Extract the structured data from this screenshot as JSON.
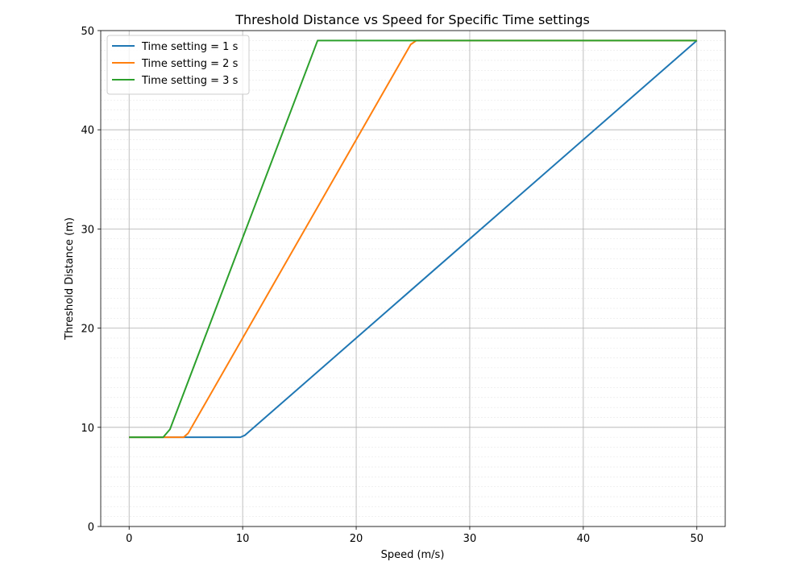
{
  "chart_data": {
    "type": "line",
    "title": "Threshold Distance vs Speed for Specific Time settings",
    "xlabel": "Speed (m/s)",
    "ylabel": "Threshold Distance (m)",
    "xlim": [
      -2.5,
      52.5
    ],
    "ylim": [
      0,
      50
    ],
    "xticks": [
      0,
      10,
      20,
      30,
      40,
      50
    ],
    "yticks": [
      0,
      10,
      20,
      30,
      40,
      50
    ],
    "yminor_step": 1,
    "grid": true,
    "legend_position": "top-left",
    "series": [
      {
        "name": "Time setting = 1 s",
        "color": "#1f77b4",
        "x": [
          0,
          9.8,
          10.2,
          50
        ],
        "y": [
          9,
          9,
          9.2,
          49
        ]
      },
      {
        "name": "Time setting = 2 s",
        "color": "#ff7f0e",
        "x": [
          0,
          4.8,
          5.2,
          24.8,
          25.3,
          50
        ],
        "y": [
          9,
          9,
          9.4,
          48.6,
          49,
          49
        ]
      },
      {
        "name": "Time setting = 3 s",
        "color": "#2ca02c",
        "x": [
          0,
          3.0,
          3.6,
          16.6,
          50
        ],
        "y": [
          9,
          9,
          9.8,
          49,
          49
        ]
      }
    ]
  }
}
